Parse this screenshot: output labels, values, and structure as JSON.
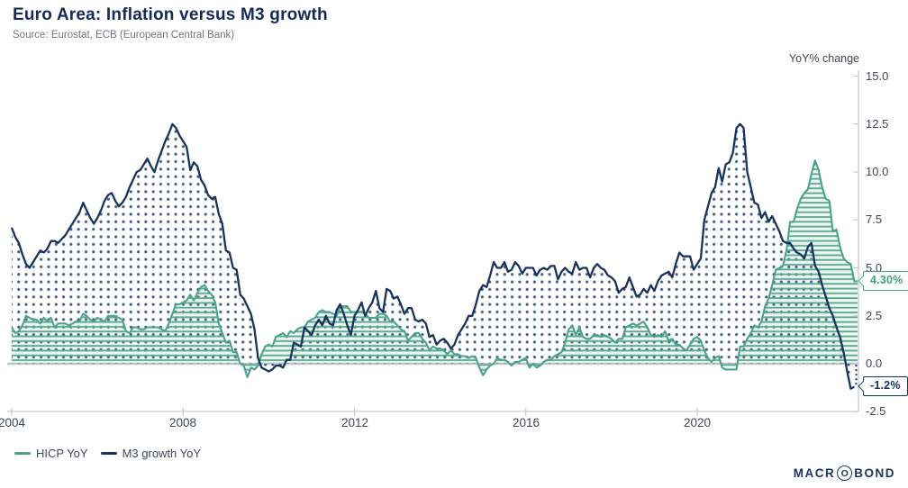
{
  "header": {
    "title": "Euro Area: Inflation versus M3 growth",
    "source": "Source: Eurostat, ECB (European Central Bank)"
  },
  "callouts": {
    "hicp": "4.30%",
    "m3": "-1.2%"
  },
  "legend": [
    {
      "label": "HICP YoY",
      "color": "#4aa38b"
    },
    {
      "label": "M3 growth YoY",
      "color": "#18335d"
    }
  ],
  "logo": {
    "pre": "MACR",
    "o": "O",
    "post": "BOND"
  },
  "colors": {
    "title": "#16295b",
    "source_text": "#70757c",
    "axis_text": "#3e4854",
    "axis_line": "#c8cbcf",
    "zero_line": "#c3c6c9",
    "hicp_line": "#4aa38b",
    "hicp_stripes": "#5caa90",
    "m3_line": "#18335d",
    "m3_dots": "#3e5c80"
  },
  "chart_data": {
    "type": "area",
    "title": "Euro Area: Inflation versus M3 growth",
    "xlabel": "",
    "ylabel": "YoY% change",
    "ylim": [
      -2.5,
      15.0
    ],
    "grid": false,
    "legend_position": "bottom-left",
    "frequency": "monthly",
    "x_start": "2004-01",
    "x_end": "2023-09",
    "x_ticks": [
      2004,
      2008,
      2012,
      2016,
      2020
    ],
    "y_ticks": [
      15.0,
      12.5,
      10.0,
      7.5,
      5.0,
      2.5,
      0.0,
      -2.5
    ],
    "series": [
      {
        "name": "HICP YoY",
        "color": "#4aa38b",
        "fill_pattern": "horizontal-stripes",
        "latest_value_label": "4.30%",
        "values": [
          1.9,
          1.6,
          1.7,
          2.0,
          2.5,
          2.4,
          2.3,
          2.3,
          2.1,
          2.4,
          2.2,
          2.4,
          1.9,
          2.1,
          2.1,
          2.1,
          2.0,
          2.1,
          2.2,
          2.2,
          2.6,
          2.5,
          2.3,
          2.2,
          2.4,
          2.3,
          2.2,
          2.5,
          2.5,
          2.5,
          2.4,
          2.3,
          1.7,
          1.6,
          1.9,
          1.9,
          1.8,
          1.8,
          1.9,
          1.9,
          1.9,
          1.9,
          1.8,
          1.7,
          2.1,
          2.6,
          3.1,
          3.1,
          3.2,
          3.3,
          3.6,
          3.3,
          3.7,
          4.0,
          4.1,
          3.8,
          3.6,
          3.2,
          2.1,
          1.6,
          1.1,
          1.2,
          0.6,
          0.6,
          0.0,
          -0.1,
          -0.7,
          -0.2,
          -0.3,
          -0.1,
          0.5,
          0.9,
          1.0,
          0.9,
          1.4,
          1.5,
          1.6,
          1.4,
          1.7,
          1.6,
          1.8,
          1.9,
          1.9,
          2.2,
          2.3,
          2.4,
          2.7,
          2.8,
          2.7,
          2.7,
          2.6,
          2.5,
          3.0,
          3.0,
          3.0,
          2.7,
          2.7,
          2.7,
          2.7,
          2.6,
          2.4,
          2.4,
          2.4,
          2.6,
          2.6,
          2.5,
          2.2,
          2.2,
          2.0,
          1.8,
          1.7,
          1.2,
          1.4,
          1.6,
          1.6,
          1.3,
          1.1,
          0.7,
          0.9,
          0.8,
          0.8,
          0.7,
          0.5,
          0.7,
          0.5,
          0.5,
          0.4,
          0.4,
          0.3,
          0.4,
          0.3,
          -0.2,
          -0.6,
          -0.3,
          -0.1,
          0.0,
          0.3,
          0.2,
          0.2,
          0.1,
          -0.1,
          0.1,
          0.1,
          0.2,
          0.3,
          -0.2,
          0.0,
          -0.2,
          -0.1,
          0.1,
          0.2,
          0.2,
          0.4,
          0.5,
          0.6,
          1.1,
          1.8,
          2.0,
          1.5,
          1.9,
          1.4,
          1.3,
          1.3,
          1.5,
          1.5,
          1.4,
          1.5,
          1.4,
          1.3,
          1.1,
          1.3,
          1.3,
          1.9,
          2.0,
          2.1,
          2.0,
          2.1,
          2.2,
          1.9,
          1.5,
          1.4,
          1.5,
          1.4,
          1.7,
          1.2,
          1.3,
          1.0,
          1.0,
          0.8,
          0.7,
          1.0,
          1.3,
          1.4,
          1.2,
          0.7,
          0.3,
          0.1,
          0.3,
          0.4,
          -0.2,
          -0.3,
          -0.3,
          -0.3,
          -0.3,
          0.9,
          0.9,
          1.3,
          1.6,
          2.0,
          1.9,
          2.2,
          3.0,
          3.4,
          4.1,
          4.9,
          5.0,
          5.1,
          5.9,
          7.4,
          7.4,
          8.1,
          8.6,
          8.9,
          9.1,
          9.9,
          10.6,
          10.1,
          9.2,
          8.6,
          8.5,
          6.9,
          7.0,
          6.1,
          5.5,
          5.3,
          5.2,
          4.3
        ]
      },
      {
        "name": "M3 growth YoY",
        "color": "#18335d",
        "fill_pattern": "dots",
        "latest_value_label": "-1.2%",
        "values": [
          7.1,
          6.6,
          6.3,
          5.7,
          5.2,
          5.0,
          5.3,
          5.6,
          5.9,
          5.8,
          6.0,
          6.4,
          6.4,
          6.3,
          6.5,
          6.7,
          7.0,
          7.3,
          7.6,
          7.9,
          8.4,
          8.0,
          7.6,
          7.3,
          7.6,
          8.0,
          8.5,
          8.8,
          8.9,
          8.5,
          8.2,
          8.4,
          8.7,
          9.2,
          9.6,
          10.0,
          10.1,
          10.4,
          10.7,
          10.3,
          10.0,
          10.6,
          11.1,
          11.6,
          12.0,
          12.5,
          12.3,
          11.9,
          11.6,
          11.3,
          10.1,
          10.5,
          10.3,
          9.6,
          9.3,
          8.8,
          8.6,
          8.7,
          7.8,
          7.3,
          5.9,
          5.8,
          5.0,
          4.9,
          3.6,
          3.4,
          3.0,
          2.6,
          1.8,
          0.3,
          -0.2,
          -0.3,
          -0.4,
          -0.3,
          -0.1,
          -0.1,
          -0.2,
          0.2,
          0.2,
          1.1,
          1.0,
          0.9,
          1.9,
          1.7,
          1.5,
          2.0,
          2.3,
          2.0,
          2.5,
          2.1,
          2.0,
          2.8,
          3.1,
          2.6,
          2.0,
          1.5,
          2.5,
          2.8,
          3.2,
          2.5,
          2.9,
          3.2,
          3.8,
          2.9,
          2.7,
          3.9,
          3.8,
          3.4,
          3.5,
          3.1,
          2.6,
          2.9,
          2.9,
          2.3,
          2.2,
          2.3,
          2.1,
          1.4,
          1.5,
          1.0,
          1.2,
          1.3,
          1.1,
          0.8,
          1.0,
          1.5,
          1.8,
          2.1,
          2.5,
          2.5,
          3.1,
          3.8,
          4.1,
          4.0,
          4.6,
          5.3,
          5.0,
          5.0,
          5.3,
          4.8,
          4.9,
          5.3,
          5.1,
          4.7,
          5.0,
          5.0,
          5.0,
          4.6,
          4.9,
          5.0,
          4.9,
          5.1,
          5.1,
          4.4,
          4.8,
          5.0,
          4.8,
          4.7,
          5.3,
          4.9,
          5.0,
          5.0,
          4.5,
          5.0,
          5.2,
          5.0,
          4.9,
          4.6,
          4.5,
          4.3,
          3.7,
          3.9,
          4.0,
          4.5,
          4.0,
          3.5,
          3.6,
          3.9,
          3.7,
          4.1,
          3.8,
          4.3,
          4.6,
          4.7,
          4.8,
          4.5,
          5.2,
          5.8,
          5.6,
          5.6,
          5.6,
          4.9,
          5.2,
          5.5,
          7.5,
          8.2,
          8.9,
          9.2,
          10.2,
          9.5,
          10.4,
          10.5,
          11.0,
          12.3,
          12.5,
          12.3,
          10.0,
          9.2,
          8.4,
          8.3,
          7.6,
          7.9,
          7.4,
          7.7,
          7.3,
          6.9,
          6.4,
          6.3,
          6.3,
          6.0,
          5.8,
          5.7,
          5.5,
          6.1,
          6.3,
          5.1,
          4.8,
          4.1,
          3.5,
          2.9,
          2.5,
          1.9,
          1.4,
          0.6,
          -0.4,
          -1.3,
          -1.2
        ]
      }
    ]
  }
}
